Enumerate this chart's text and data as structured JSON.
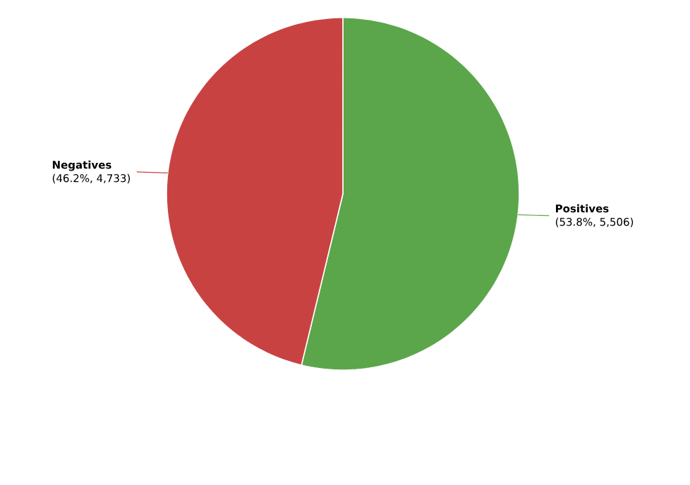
{
  "chart_data": {
    "type": "pie",
    "categories": [
      "Positives",
      "Negatives"
    ],
    "values": [
      5506,
      4733
    ],
    "colors": [
      "#5ba64a",
      "#c94242"
    ],
    "value_labels": [
      "(53.8%, 5,506)",
      "(46.2%, 4,733)"
    ]
  }
}
